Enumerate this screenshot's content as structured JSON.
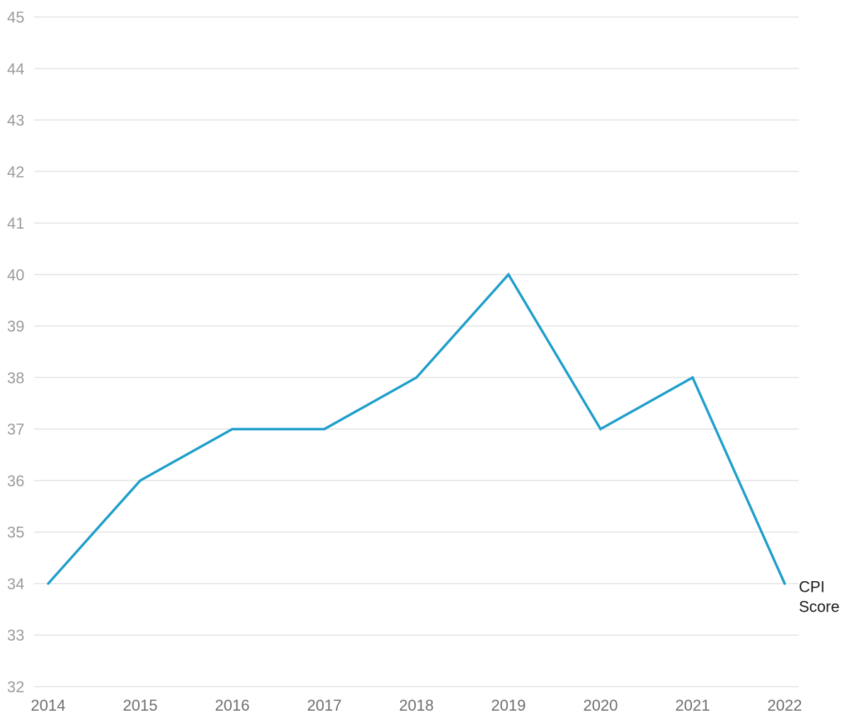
{
  "chart_data": {
    "type": "line",
    "title": "",
    "xlabel": "",
    "ylabel": "",
    "x": [
      "2014",
      "2015",
      "2016",
      "2017",
      "2018",
      "2019",
      "2020",
      "2021",
      "2022"
    ],
    "ylim": [
      32,
      45
    ],
    "yticks": [
      32,
      33,
      34,
      35,
      36,
      37,
      38,
      39,
      40,
      41,
      42,
      43,
      44,
      45
    ],
    "grid": true,
    "legend": "none",
    "series": [
      {
        "name": "CPI Score",
        "label_lines": [
          "CPI",
          "Score"
        ],
        "color": "#1f9fcb",
        "values": [
          34,
          36,
          37,
          37,
          38,
          40,
          37,
          38,
          34
        ]
      }
    ]
  }
}
